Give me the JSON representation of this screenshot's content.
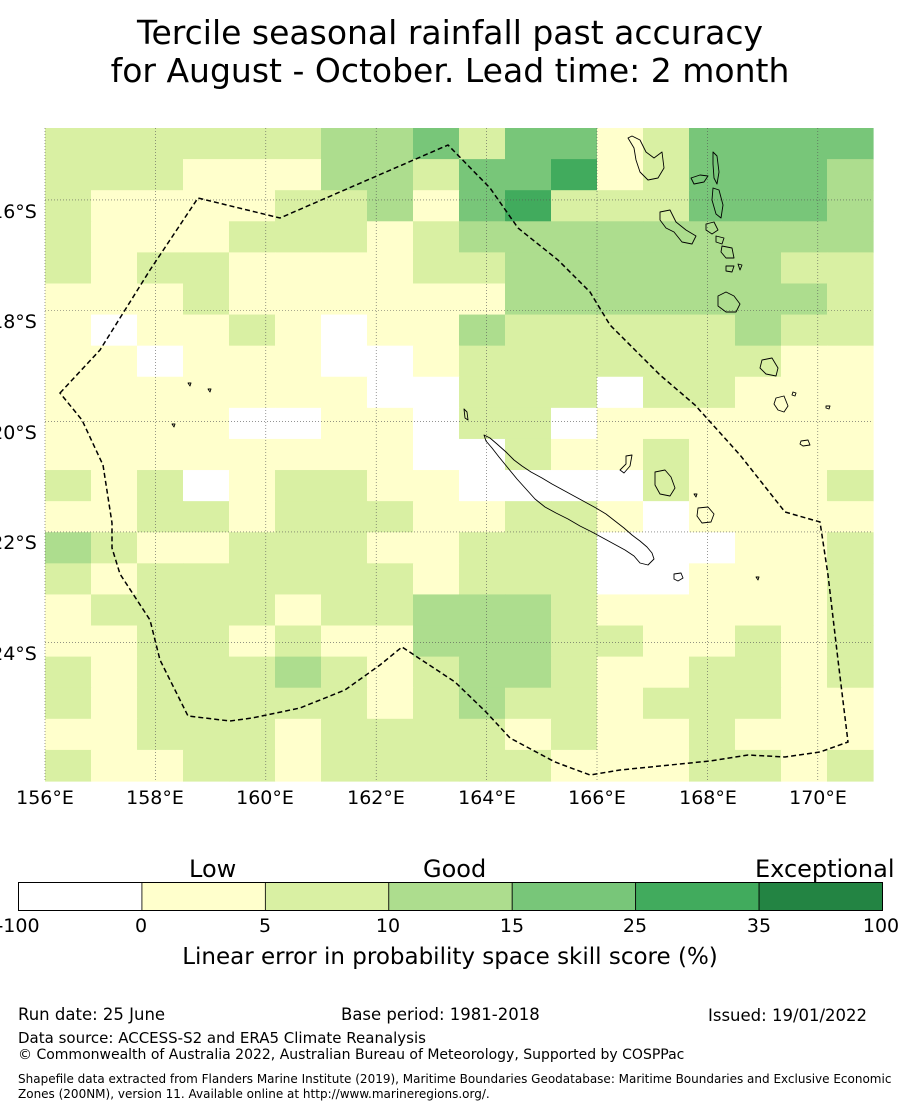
{
  "title": {
    "line1": "Tercile seasonal rainfall past accuracy",
    "line2": "for August - October. Lead time: 2 month"
  },
  "map": {
    "lon_labels": [
      "156°E",
      "158°E",
      "160°E",
      "162°E",
      "164°E",
      "166°E",
      "168°E",
      "170°E"
    ],
    "lon_values": [
      156,
      158,
      160,
      162,
      164,
      166,
      168,
      170
    ],
    "lat_labels": [
      "16°S",
      "18°S",
      "20°S",
      "22°S",
      "24°S"
    ],
    "lat_values": [
      -16,
      -18,
      -20,
      -22,
      -24
    ],
    "lon_range": [
      156,
      171
    ],
    "lat_range": [
      -26.5,
      -14.7
    ],
    "grid": "dotted",
    "boundary": "dashed EEZ outline",
    "colors": {
      "white": "#ffffff",
      "c1": "#ffffcc",
      "c2": "#d9f0a3",
      "c3": "#addd8e",
      "c4": "#78c679",
      "c5": "#41ab5d",
      "c6": "#238443"
    }
  },
  "colorbar": {
    "category_low": "Low",
    "category_good": "Good",
    "category_exceptional": "Exceptional",
    "ticks": [
      "-100",
      "0",
      "5",
      "10",
      "15",
      "25",
      "35",
      "100"
    ],
    "colors": [
      "#ffffff",
      "#ffffcc",
      "#d9f0a3",
      "#addd8e",
      "#78c679",
      "#41ab5d",
      "#238443"
    ],
    "label": "Linear error in probability space skill score (%)"
  },
  "footer": {
    "run_date": "Run date: 25 June",
    "base_period": "Base period: 1981-2018",
    "issued": "Issued: 19/01/2022",
    "data_source": "Data source: ACCESS-S2 and ERA5 Climate Reanalysis",
    "copyright": "© Commonwealth of Australia 2022, Australian Bureau of Meteorology, Supported by COSPPac",
    "shapefile": "Shapefile data extracted from Flanders Marine Institute (2019), Maritime Boundaries Geodatabase: Maritime Boundaries and Exclusive Economic Zones (200NM), version 11. Available online at http://www.marineregions.org/."
  }
}
